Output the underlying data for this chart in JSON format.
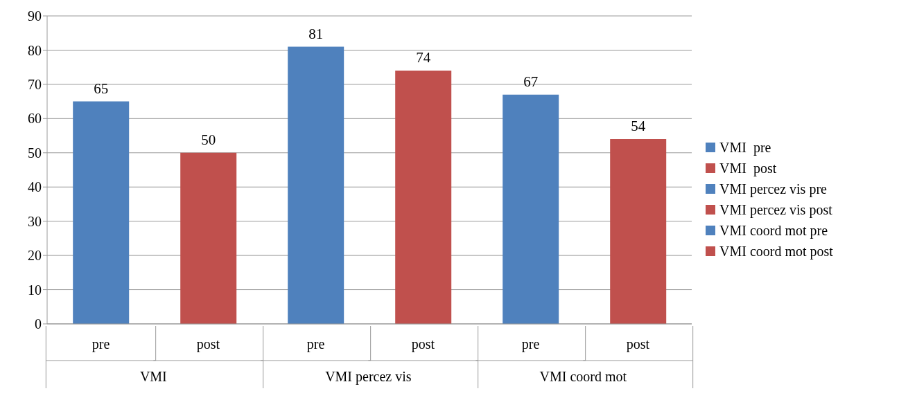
{
  "chart_data": {
    "type": "bar",
    "stacked": true,
    "categories": [
      "pre",
      "post",
      "pre",
      "post",
      "pre",
      "post"
    ],
    "annotations": [
      "VMI",
      "VMI percez vis",
      "VMI coord mot"
    ],
    "series": [
      {
        "name": "VMI  pre",
        "color": "#4f81bd",
        "values": [
          65,
          null,
          null,
          null,
          null,
          null
        ]
      },
      {
        "name": "VMI  post",
        "color": "#c0504d",
        "values": [
          null,
          50,
          null,
          null,
          null,
          null
        ]
      },
      {
        "name": "VMI percez vis pre",
        "color": "#4f81bd",
        "values": [
          null,
          null,
          81,
          null,
          null,
          null
        ]
      },
      {
        "name": "VMI percez vis post",
        "color": "#c0504d",
        "values": [
          null,
          null,
          null,
          74,
          null,
          null
        ]
      },
      {
        "name": "VMI coord mot pre",
        "color": "#4f81bd",
        "values": [
          null,
          null,
          null,
          null,
          67,
          null
        ]
      },
      {
        "name": "VMI coord mot post",
        "color": "#c0504d",
        "values": [
          null,
          null,
          null,
          null,
          null,
          54
        ]
      }
    ],
    "ylim": [
      0,
      90
    ],
    "yticks": [
      0,
      10,
      20,
      30,
      40,
      50,
      60,
      70,
      80,
      90
    ],
    "grid": "y",
    "legend": "right",
    "data_labels": true
  }
}
